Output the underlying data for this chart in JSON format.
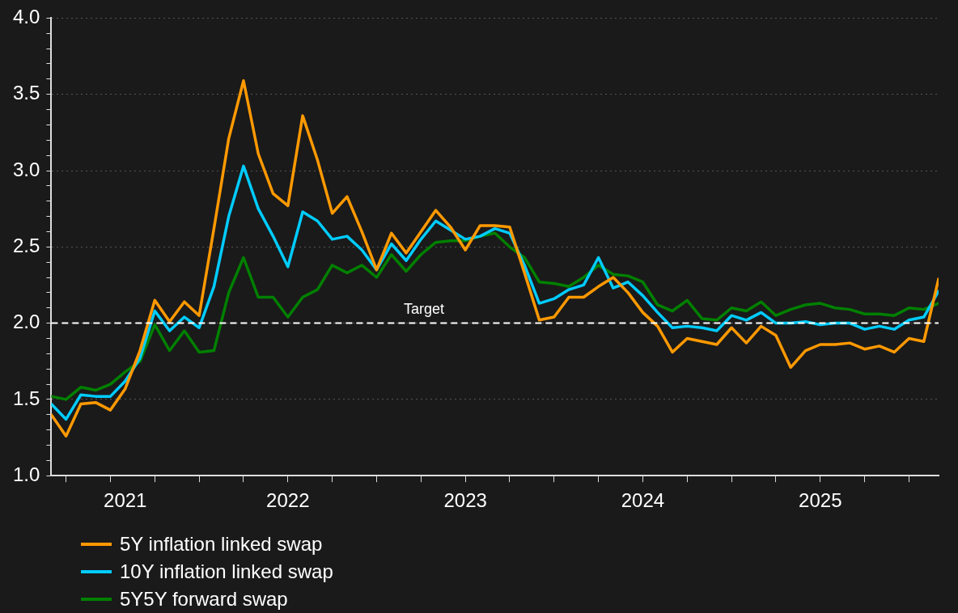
{
  "chart_data": {
    "type": "line",
    "x": [
      "2021-03",
      "2021-04",
      "2021-05",
      "2021-06",
      "2021-07",
      "2021-08",
      "2021-09",
      "2021-10",
      "2021-11",
      "2021-12",
      "2022-01",
      "2022-02",
      "2022-03",
      "2022-04",
      "2022-05",
      "2022-06",
      "2022-07",
      "2022-08",
      "2022-09",
      "2022-10",
      "2022-11",
      "2022-12",
      "2023-01",
      "2023-02",
      "2023-03",
      "2023-04",
      "2023-05",
      "2023-06",
      "2023-07",
      "2023-08",
      "2023-09",
      "2023-10",
      "2023-11",
      "2023-12",
      "2024-01",
      "2024-02",
      "2024-03",
      "2024-04",
      "2024-05",
      "2024-06",
      "2024-07",
      "2024-08",
      "2024-09",
      "2024-10",
      "2024-11",
      "2024-12",
      "2025-01",
      "2025-02",
      "2025-03",
      "2025-04",
      "2025-05",
      "2025-06",
      "2025-07",
      "2025-08",
      "2025-09",
      "2025-10",
      "2025-11",
      "2025-12",
      "2026-01",
      "2026-02",
      "2026-03"
    ],
    "series": [
      {
        "name": "5Y inflation linked swap",
        "color": "#ff9900",
        "values": [
          1.4,
          1.26,
          1.47,
          1.48,
          1.43,
          1.57,
          1.82,
          2.15,
          2.01,
          2.14,
          2.05,
          2.62,
          3.21,
          3.59,
          3.11,
          2.85,
          2.77,
          3.36,
          3.07,
          2.72,
          2.83,
          2.6,
          2.35,
          2.59,
          2.46,
          2.6,
          2.74,
          2.63,
          2.48,
          2.64,
          2.64,
          2.63,
          2.33,
          2.02,
          2.04,
          2.17,
          2.17,
          2.24,
          2.3,
          2.2,
          2.07,
          1.98,
          1.81,
          1.9,
          1.88,
          1.86,
          1.97,
          1.87,
          1.98,
          1.92,
          1.71,
          1.82,
          1.86,
          1.86,
          1.87,
          1.83,
          1.85,
          1.81,
          1.9,
          1.88,
          2.29
        ]
      },
      {
        "name": "10Y inflation linked swap",
        "color": "#00ccff",
        "values": [
          1.47,
          1.37,
          1.53,
          1.52,
          1.52,
          1.62,
          1.77,
          2.08,
          1.95,
          2.04,
          1.97,
          2.24,
          2.7,
          3.03,
          2.75,
          2.57,
          2.37,
          2.73,
          2.67,
          2.55,
          2.57,
          2.48,
          2.35,
          2.52,
          2.41,
          2.55,
          2.67,
          2.61,
          2.55,
          2.57,
          2.62,
          2.59,
          2.38,
          2.13,
          2.16,
          2.22,
          2.25,
          2.43,
          2.23,
          2.27,
          2.18,
          2.07,
          1.97,
          1.98,
          1.97,
          1.95,
          2.05,
          2.02,
          2.07,
          2.0,
          2.0,
          2.01,
          1.99,
          2.0,
          2.0,
          1.96,
          1.98,
          1.96,
          2.02,
          2.04,
          2.21
        ]
      },
      {
        "name": "5Y5Y forward swap",
        "color": "#008000",
        "values": [
          1.52,
          1.5,
          1.58,
          1.56,
          1.6,
          1.68,
          1.75,
          1.99,
          1.82,
          1.95,
          1.81,
          1.82,
          2.2,
          2.43,
          2.17,
          2.17,
          2.04,
          2.17,
          2.22,
          2.38,
          2.33,
          2.38,
          2.3,
          2.45,
          2.34,
          2.45,
          2.53,
          2.54,
          2.54,
          2.57,
          2.59,
          2.5,
          2.43,
          2.27,
          2.26,
          2.24,
          2.3,
          2.38,
          2.32,
          2.31,
          2.27,
          2.12,
          2.08,
          2.15,
          2.03,
          2.02,
          2.1,
          2.08,
          2.14,
          2.05,
          2.09,
          2.12,
          2.13,
          2.1,
          2.09,
          2.06,
          2.06,
          2.05,
          2.1,
          2.09,
          2.13
        ]
      }
    ],
    "xlim": [
      "2021-03",
      "2026-03"
    ],
    "xticks": [
      {
        "value": "2021-04",
        "label": null
      },
      {
        "value": "2021-07",
        "label": null
      },
      {
        "value": "2021-08",
        "label": "2021"
      },
      {
        "value": "2021-10",
        "label": null
      },
      {
        "value": "2022-01",
        "label": null
      },
      {
        "value": "2022-04",
        "label": null
      },
      {
        "value": "2022-07",
        "label": "2022"
      },
      {
        "value": "2022-07",
        "label": null
      },
      {
        "value": "2022-10",
        "label": null
      },
      {
        "value": "2023-01",
        "label": null
      },
      {
        "value": "2023-04",
        "label": null
      },
      {
        "value": "2023-07",
        "label": "2023"
      },
      {
        "value": "2023-07",
        "label": null
      },
      {
        "value": "2023-10",
        "label": null
      },
      {
        "value": "2024-01",
        "label": null
      },
      {
        "value": "2024-04",
        "label": null
      },
      {
        "value": "2024-07",
        "label": "2024"
      },
      {
        "value": "2024-07",
        "label": null
      },
      {
        "value": "2024-10",
        "label": null
      },
      {
        "value": "2025-01",
        "label": null
      },
      {
        "value": "2025-04",
        "label": null
      },
      {
        "value": "2025-07",
        "label": "2025"
      },
      {
        "value": "2025-07",
        "label": null
      },
      {
        "value": "2025-10",
        "label": null
      },
      {
        "value": "2026-01",
        "label": null
      }
    ],
    "ylim": [
      1,
      4
    ],
    "yticks": [
      {
        "value": 1,
        "label": "1.0"
      },
      {
        "value": 1.1,
        "label": null
      },
      {
        "value": 1.2,
        "label": null
      },
      {
        "value": 1.3,
        "label": null
      },
      {
        "value": 1.4,
        "label": null
      },
      {
        "value": 1.5,
        "label": "1.5"
      },
      {
        "value": 1.6,
        "label": null
      },
      {
        "value": 1.7,
        "label": null
      },
      {
        "value": 1.8,
        "label": null
      },
      {
        "value": 1.9,
        "label": null
      },
      {
        "value": 2,
        "label": "2.0"
      },
      {
        "value": 2.1,
        "label": null
      },
      {
        "value": 2.2,
        "label": null
      },
      {
        "value": 2.3,
        "label": null
      },
      {
        "value": 2.4,
        "label": null
      },
      {
        "value": 2.5,
        "label": "2.5"
      },
      {
        "value": 2.6,
        "label": null
      },
      {
        "value": 2.7,
        "label": null
      },
      {
        "value": 2.8,
        "label": null
      },
      {
        "value": 2.9,
        "label": null
      },
      {
        "value": 3,
        "label": "3.0"
      },
      {
        "value": 3.1,
        "label": null
      },
      {
        "value": 3.2,
        "label": null
      },
      {
        "value": 3.3,
        "label": null
      },
      {
        "value": 3.4,
        "label": null
      },
      {
        "value": 3.5,
        "label": "3.5"
      },
      {
        "value": 3.6,
        "label": null
      },
      {
        "value": 3.7,
        "label": null
      },
      {
        "value": 3.8,
        "label": null
      },
      {
        "value": 3.9,
        "label": null
      },
      {
        "value": 4,
        "label": "4.0"
      }
    ],
    "ref_lines": [
      {
        "axis": "y",
        "value": 2,
        "label": "Target",
        "color": "#ffffff",
        "line_style": "dashed"
      }
    ],
    "grid": "y",
    "legend": "bottom left",
    "marker": "none",
    "line_style": "solid"
  }
}
